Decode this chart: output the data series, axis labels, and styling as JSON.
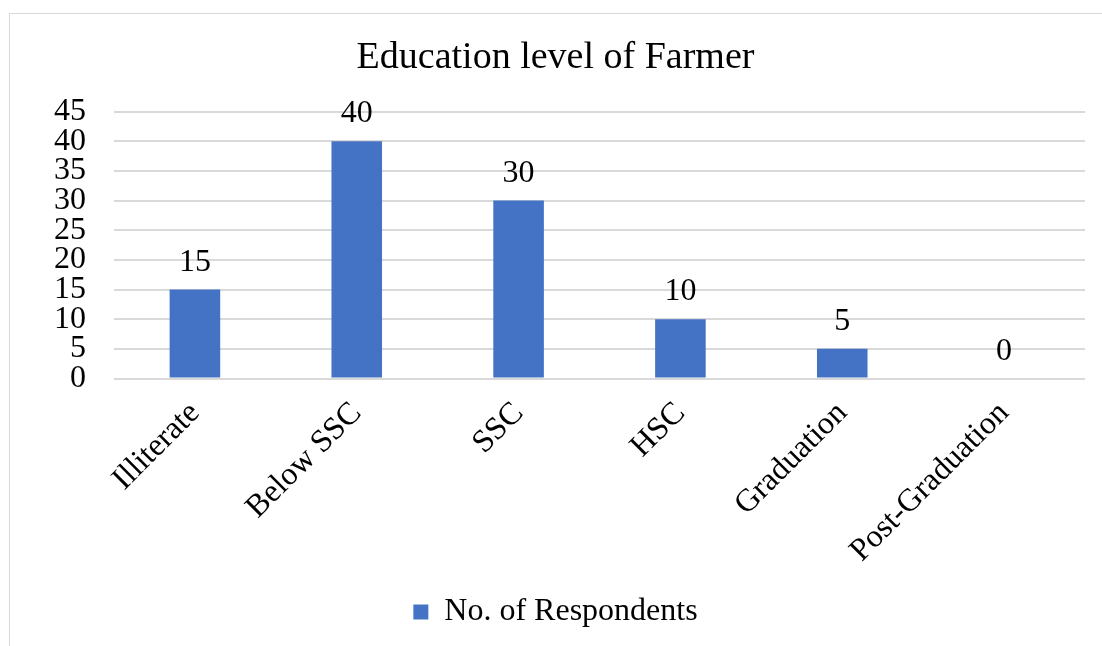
{
  "chart_data": {
    "type": "bar",
    "title": "Education level of Farmer",
    "categories": [
      "Illiterate",
      "Below SSC",
      "SSC",
      "HSC",
      "Graduation",
      "Post-Graduation"
    ],
    "series": [
      {
        "name": "No. of Respondents",
        "color": "#4472c4",
        "values": [
          15,
          40,
          30,
          10,
          5,
          0
        ]
      }
    ],
    "ylim": [
      0,
      45
    ],
    "yticks": [
      0,
      5,
      10,
      15,
      20,
      25,
      30,
      35,
      40,
      45
    ],
    "grid": "y",
    "legend": "bottom",
    "data_labels": true
  }
}
